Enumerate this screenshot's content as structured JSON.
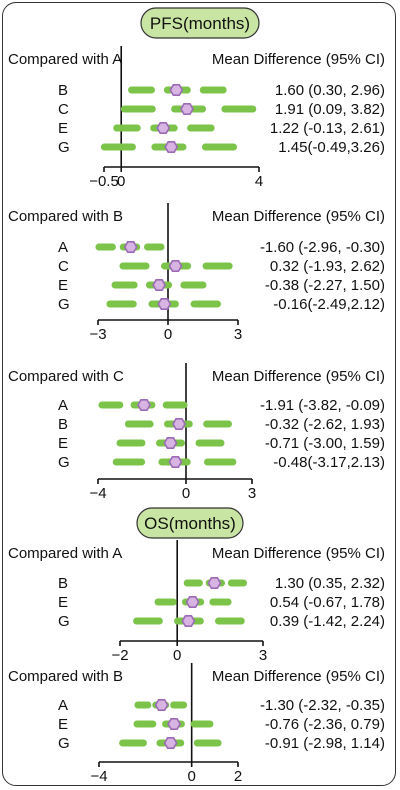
{
  "colors": {
    "ci_bar": "#7cc34a",
    "point_fill": "#d8b4e2",
    "point_stroke": "#9b6bb5",
    "pill_fill": "#c9e5a3",
    "axis": "#111111"
  },
  "headers": {
    "pfs": "PFS(months)",
    "os": "OS(months)"
  },
  "column_header": "Mean Difference (95% CI)",
  "chart_data": [
    {
      "type": "forest",
      "group": "PFS(months)",
      "comparator_label": "Compared with A",
      "column_header": "Mean Difference (95% CI)",
      "xlim": [
        -0.5,
        4
      ],
      "ticks": [
        -0.5,
        0,
        4
      ],
      "tick_labels": [
        "−0.5",
        "0",
        "4"
      ],
      "rows": [
        {
          "label": "B",
          "mean": 1.6,
          "lower": 0.3,
          "upper": 2.96,
          "text": "1.60 (0.30, 2.96)"
        },
        {
          "label": "C",
          "mean": 1.91,
          "lower": 0.09,
          "upper": 3.82,
          "text": "1.91 (0.09, 3.82)"
        },
        {
          "label": "E",
          "mean": 1.22,
          "lower": -0.13,
          "upper": 2.61,
          "text": "1.22 (-0.13, 2.61)"
        },
        {
          "label": "G",
          "mean": 1.45,
          "lower": -0.49,
          "upper": 3.26,
          "text": "1.45(-0.49,3.26)"
        }
      ]
    },
    {
      "type": "forest",
      "group": "PFS(months)",
      "comparator_label": "Compared with B",
      "column_header": "Mean Difference (95% CI)",
      "xlim": [
        -3,
        3
      ],
      "ticks": [
        -3,
        0,
        3
      ],
      "tick_labels": [
        "−3",
        "0",
        "3"
      ],
      "rows": [
        {
          "label": "A",
          "mean": -1.6,
          "lower": -2.96,
          "upper": -0.3,
          "text": "-1.60 (-2.96, -0.30)"
        },
        {
          "label": "C",
          "mean": 0.32,
          "lower": -1.93,
          "upper": 2.62,
          "text": "0.32 (-1.93, 2.62)"
        },
        {
          "label": "E",
          "mean": -0.38,
          "lower": -2.27,
          "upper": 1.5,
          "text": "-0.38 (-2.27, 1.50)"
        },
        {
          "label": "G",
          "mean": -0.16,
          "lower": -2.49,
          "upper": 2.12,
          "text": "-0.16(-2.49,2.12)"
        }
      ]
    },
    {
      "type": "forest",
      "group": "PFS(months)",
      "comparator_label": "Compared with C",
      "column_header": "Mean Difference (95% CI)",
      "xlim": [
        -4,
        3
      ],
      "ticks": [
        -4,
        0,
        3
      ],
      "tick_labels": [
        "−4",
        "0",
        "3"
      ],
      "rows": [
        {
          "label": "A",
          "mean": -1.91,
          "lower": -3.82,
          "upper": -0.09,
          "text": "-1.91 (-3.82, -0.09)"
        },
        {
          "label": "B",
          "mean": -0.32,
          "lower": -2.62,
          "upper": 1.93,
          "text": "-0.32 (-2.62, 1.93)"
        },
        {
          "label": "E",
          "mean": -0.71,
          "lower": -3.0,
          "upper": 1.59,
          "text": "-0.71 (-3.00, 1.59)"
        },
        {
          "label": "G",
          "mean": -0.48,
          "lower": -3.17,
          "upper": 2.13,
          "text": "-0.48(-3.17,2.13)"
        }
      ]
    },
    {
      "type": "forest",
      "group": "OS(months)",
      "comparator_label": "Compared with A",
      "column_header": "Mean Difference (95% CI)",
      "xlim": [
        -2,
        3
      ],
      "ticks": [
        -2,
        0,
        3
      ],
      "tick_labels": [
        "−2",
        "0",
        "3"
      ],
      "rows": [
        {
          "label": "B",
          "mean": 1.3,
          "lower": 0.35,
          "upper": 2.32,
          "text": "1.30 (0.35, 2.32)"
        },
        {
          "label": "E",
          "mean": 0.54,
          "lower": -0.67,
          "upper": 1.78,
          "text": "0.54 (-0.67, 1.78)"
        },
        {
          "label": "G",
          "mean": 0.39,
          "lower": -1.42,
          "upper": 2.24,
          "text": "0.39 (-1.42, 2.24)"
        }
      ]
    },
    {
      "type": "forest",
      "group": "OS(months)",
      "comparator_label": "Compared with B",
      "column_header": "Mean Difference (95% CI)",
      "xlim": [
        -4,
        2
      ],
      "ticks": [
        -4,
        0,
        2
      ],
      "tick_labels": [
        "−4",
        "0",
        "2"
      ],
      "rows": [
        {
          "label": "A",
          "mean": -1.3,
          "lower": -2.32,
          "upper": -0.35,
          "text": "-1.30 (-2.32, -0.35)"
        },
        {
          "label": "E",
          "mean": -0.76,
          "lower": -2.36,
          "upper": 0.79,
          "text": "-0.76 (-2.36, 0.79)"
        },
        {
          "label": "G",
          "mean": -0.91,
          "lower": -2.98,
          "upper": 1.14,
          "text": "-0.91 (-2.98, 1.14)"
        }
      ]
    }
  ]
}
